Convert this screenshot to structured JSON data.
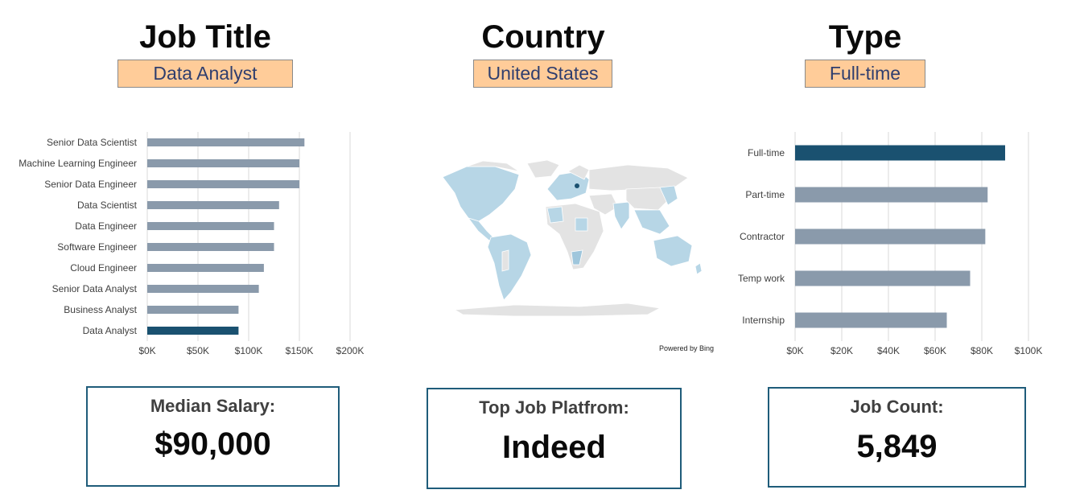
{
  "filters": {
    "job_title": {
      "heading": "Job Title",
      "value": "Data Analyst"
    },
    "country": {
      "heading": "Country",
      "value": "United States"
    },
    "type": {
      "heading": "Type",
      "value": "Full-time"
    }
  },
  "map": {
    "attribution": "Powered by Bing"
  },
  "cards": {
    "median_salary": {
      "label": "Median Salary:",
      "value": "$90,000"
    },
    "top_platform": {
      "label": "Top Job Platfrom:",
      "value": "Indeed"
    },
    "job_count": {
      "label": "Job Count:",
      "value": "5,849"
    }
  },
  "colors": {
    "highlight": "#1a5170",
    "bar": "#8a9aab",
    "grid": "#d9d9d9"
  },
  "chart_data": [
    {
      "type": "bar",
      "orientation": "horizontal",
      "categories": [
        "Senior Data Scientist",
        "Machine Learning Engineer",
        "Senior Data Engineer",
        "Data Scientist",
        "Data Engineer",
        "Software Engineer",
        "Cloud Engineer",
        "Senior Data Analyst",
        "Business Analyst",
        "Data Analyst"
      ],
      "values": [
        155000,
        150000,
        150000,
        130000,
        125000,
        125000,
        115000,
        110000,
        90000,
        90000
      ],
      "highlight": "Data Analyst",
      "xlim": [
        0,
        200000
      ],
      "xticks": [
        "$0K",
        "$50K",
        "$100K",
        "$150K",
        "$200K"
      ],
      "grid": true
    },
    {
      "type": "bar",
      "orientation": "horizontal",
      "categories": [
        "Full-time",
        "Part-time",
        "Contractor",
        "Temp work",
        "Internship"
      ],
      "values": [
        90000,
        82500,
        81500,
        75000,
        65000
      ],
      "highlight": "Full-time",
      "xlim": [
        0,
        100000
      ],
      "xticks": [
        "$0K",
        "$20K",
        "$40K",
        "$60K",
        "$80K",
        "$100K"
      ],
      "grid": true
    }
  ]
}
